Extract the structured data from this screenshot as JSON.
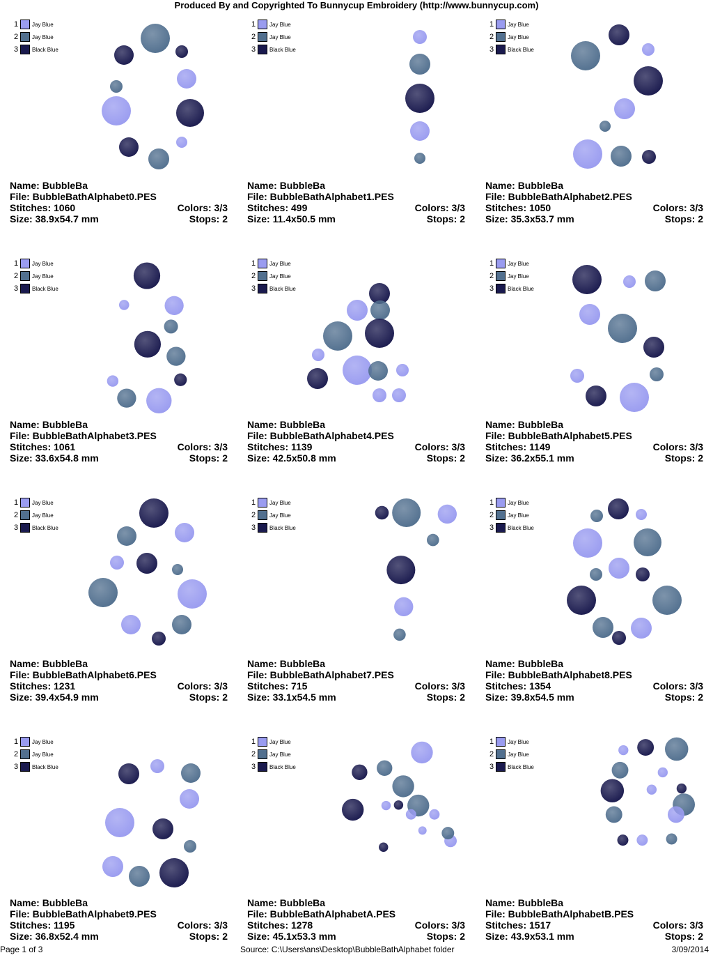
{
  "header": "Produced By and Copyrighted To Bunnycup Embroidery (http://www.bunnycup.com)",
  "legend": [
    {
      "num": "1",
      "name": "Jay Blue",
      "color": "#9a9cf0"
    },
    {
      "num": "2",
      "name": "Jay Blue",
      "color": "#52708f"
    },
    {
      "num": "3",
      "name": "Black Blue",
      "color": "#1a1a4e"
    }
  ],
  "labels": {
    "name": "Name:",
    "file": "File:",
    "stitches": "Stitches:",
    "size": "Size:",
    "colors": "Colors:",
    "stops": "Stops:"
  },
  "designs": [
    {
      "name": "BubbleBa",
      "file": "BubbleBathAlphabet0.PES",
      "stitches": "1060",
      "colors": "3/3",
      "size": "38.9x54.7 mm",
      "stops": "2"
    },
    {
      "name": "BubbleBa",
      "file": "BubbleBathAlphabet1.PES",
      "stitches": "499",
      "colors": "3/3",
      "size": "11.4x50.5 mm",
      "stops": "2"
    },
    {
      "name": "BubbleBa",
      "file": "BubbleBathAlphabet2.PES",
      "stitches": "1050",
      "colors": "3/3",
      "size": "35.3x53.7 mm",
      "stops": "2"
    },
    {
      "name": "BubbleBa",
      "file": "BubbleBathAlphabet3.PES",
      "stitches": "1061",
      "colors": "3/3",
      "size": "33.6x54.8 mm",
      "stops": "2"
    },
    {
      "name": "BubbleBa",
      "file": "BubbleBathAlphabet4.PES",
      "stitches": "1139",
      "colors": "3/3",
      "size": "42.5x50.8 mm",
      "stops": "2"
    },
    {
      "name": "BubbleBa",
      "file": "BubbleBathAlphabet5.PES",
      "stitches": "1149",
      "colors": "3/3",
      "size": "36.2x55.1 mm",
      "stops": "2"
    },
    {
      "name": "BubbleBa",
      "file": "BubbleBathAlphabet6.PES",
      "stitches": "1231",
      "colors": "3/3",
      "size": "39.4x54.9 mm",
      "stops": "2"
    },
    {
      "name": "BubbleBa",
      "file": "BubbleBathAlphabet7.PES",
      "stitches": "715",
      "colors": "3/3",
      "size": "33.1x54.5 mm",
      "stops": "2"
    },
    {
      "name": "BubbleBa",
      "file": "BubbleBathAlphabet8.PES",
      "stitches": "1354",
      "colors": "3/3",
      "size": "39.8x54.5 mm",
      "stops": "2"
    },
    {
      "name": "BubbleBa",
      "file": "BubbleBathAlphabet9.PES",
      "stitches": "1195",
      "colors": "3/3",
      "size": "36.8x52.4 mm",
      "stops": "2"
    },
    {
      "name": "BubbleBa",
      "file": "BubbleBathAlphabetA.PES",
      "stitches": "1278",
      "colors": "3/3",
      "size": "45.1x53.3 mm",
      "stops": "2"
    },
    {
      "name": "BubbleBa",
      "file": "BubbleBathAlphabetB.PES",
      "stitches": "1517",
      "colors": "3/3",
      "size": "43.9x53.1 mm",
      "stops": "2"
    }
  ],
  "footer": {
    "page": "Page 1 of 3",
    "source": "Source: C:\\Users\\ans\\Desktop\\BubbleBathAlphabet folder",
    "date": "3/09/2014"
  }
}
